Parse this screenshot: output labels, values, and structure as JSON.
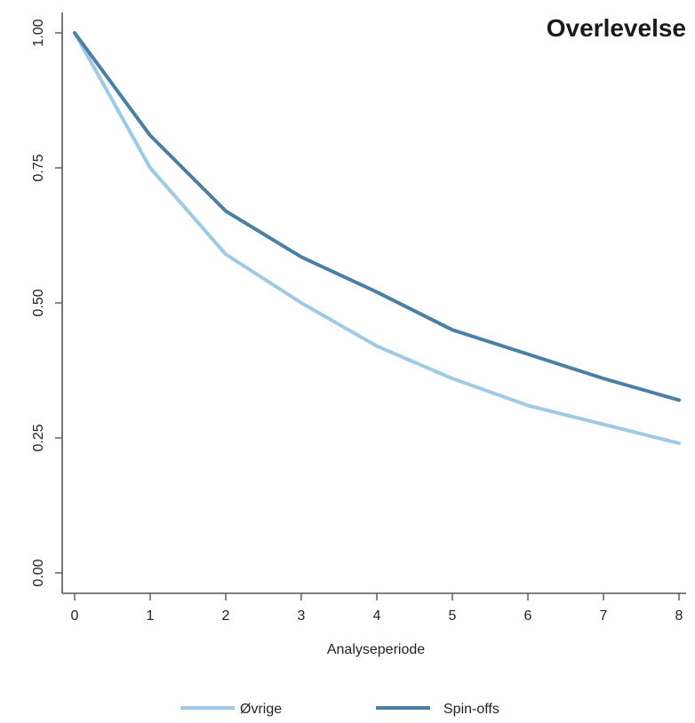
{
  "chart_data": {
    "type": "line",
    "title": "Overlevelse",
    "xlabel": "Analyseperiode",
    "ylabel": "",
    "x": [
      0,
      1,
      2,
      3,
      4,
      5,
      6,
      7,
      8
    ],
    "xticks": [
      "0",
      "1",
      "2",
      "3",
      "4",
      "5",
      "6",
      "7",
      "8"
    ],
    "yticks": [
      "0.00",
      "0.25",
      "0.50",
      "0.75",
      "1.00"
    ],
    "ytick_values": [
      0,
      0.25,
      0.5,
      0.75,
      1.0
    ],
    "xlim": [
      0,
      8
    ],
    "ylim": [
      0,
      1.0
    ],
    "grid": false,
    "legend_position": "bottom",
    "series": [
      {
        "name": "Øvrige",
        "color": "#9ecae6",
        "values": [
          1.0,
          0.75,
          0.59,
          0.5,
          0.42,
          0.36,
          0.31,
          0.275,
          0.24
        ]
      },
      {
        "name": "Spin-offs",
        "color": "#4a7fa6",
        "values": [
          1.0,
          0.81,
          0.67,
          0.585,
          0.52,
          0.45,
          0.405,
          0.36,
          0.32
        ]
      }
    ]
  }
}
